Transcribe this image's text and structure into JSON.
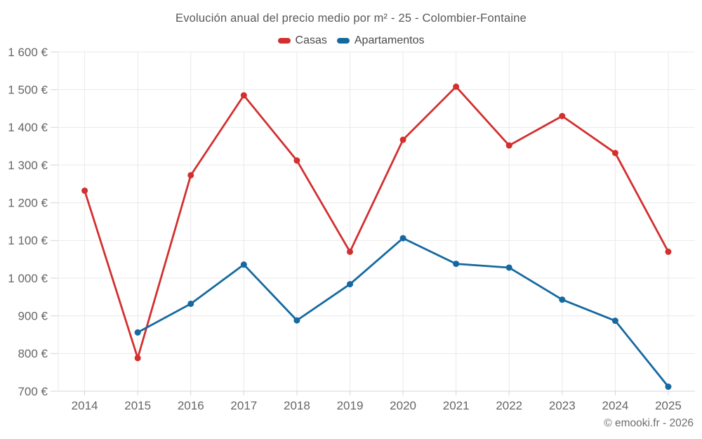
{
  "title": "Evolución anual del precio medio por m² - 25 - Colombier-Fontaine",
  "footer": "© emooki.fr - 2026",
  "colors": {
    "casas": "#d32f2f",
    "apartamentos": "#1669a0",
    "grid": "#e9e9e9",
    "axis": "#d6d6d6",
    "tick_text": "#666666",
    "title_text": "#58585a",
    "legend_text": "#4a4a4a",
    "footer_text": "#6e6e6e"
  },
  "chart_data": {
    "type": "line",
    "x": [
      2014,
      2015,
      2016,
      2017,
      2018,
      2019,
      2020,
      2021,
      2022,
      2023,
      2024,
      2025
    ],
    "x_labels": [
      "2014",
      "2015",
      "2016",
      "2017",
      "2018",
      "2019",
      "2020",
      "2021",
      "2022",
      "2023",
      "2024",
      "2025"
    ],
    "series": [
      {
        "name": "Casas",
        "color": "#d32f2f",
        "values": [
          1232,
          788,
          1273,
          1485,
          1312,
          1070,
          1367,
          1508,
          1352,
          1430,
          1332,
          1070
        ]
      },
      {
        "name": "Apartamentos",
        "color": "#1669a0",
        "values": [
          null,
          856,
          932,
          1036,
          888,
          984,
          1106,
          1038,
          1028,
          943,
          887,
          712
        ]
      }
    ],
    "title": "Evolución anual del precio medio por m² - 25 - Colombier-Fontaine",
    "xlabel": "",
    "ylabel": "",
    "ylim": [
      700,
      1600
    ],
    "ytick_step": 100,
    "ytick_labels": [
      "700 €",
      "800 €",
      "900 €",
      "1 000 €",
      "1 100 €",
      "1 200 €",
      "1 300 €",
      "1 400 €",
      "1 500 €",
      "1 600 €"
    ],
    "grid": true,
    "legend_position": "top",
    "marker_radius": 4.5,
    "line_width": 2.8
  }
}
